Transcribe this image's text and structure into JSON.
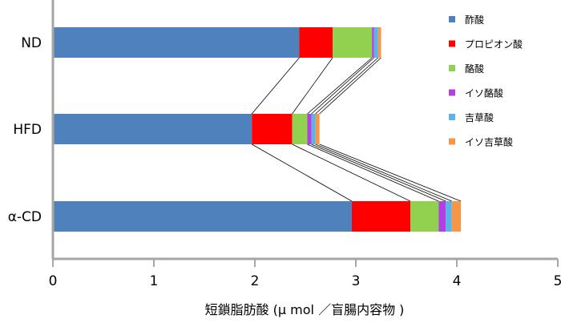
{
  "chart_data": {
    "type": "bar",
    "orientation": "horizontal",
    "stacked": true,
    "categories": [
      "ND",
      "HFD",
      "α-CD"
    ],
    "series": [
      {
        "name": "酢酸",
        "color": "#4F81BD",
        "values": [
          2.44,
          1.97,
          2.96
        ]
      },
      {
        "name": "プロピオン酸",
        "color": "#FF0000",
        "values": [
          0.33,
          0.4,
          0.58
        ]
      },
      {
        "name": "酪酸",
        "color": "#92D050",
        "values": [
          0.39,
          0.15,
          0.28
        ]
      },
      {
        "name": "イソ酪酸",
        "color": "#B040E0",
        "values": [
          0.02,
          0.04,
          0.07
        ]
      },
      {
        "name": "吉草酸",
        "color": "#5BB4E8",
        "values": [
          0.04,
          0.04,
          0.06
        ]
      },
      {
        "name": "イソ吉草酸",
        "color": "#F79646",
        "values": [
          0.03,
          0.04,
          0.09
        ]
      }
    ],
    "xlim": [
      0,
      5
    ],
    "xticks": [
      "0",
      "1",
      "2",
      "3",
      "4",
      "5"
    ],
    "xlabel": "短鎖脂肪酸 (μ mol ／盲腸内容物 )",
    "ylabel": "",
    "grid": false,
    "legend_position": "top-right",
    "series_connector_lines": true
  }
}
